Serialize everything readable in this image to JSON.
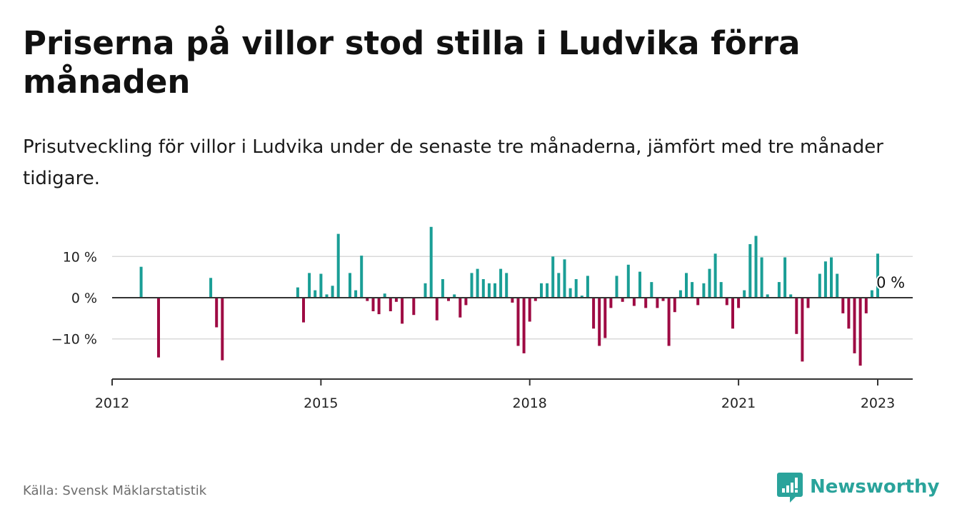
{
  "title": "Priserna på villor stod stilla i Ludvika förra månaden",
  "subtitle": "Prisutveckling för villor i Ludvika under de senaste tre månaderna, jämfört med tre månader tidigare.",
  "source": "Källa: Svensk Mäklarstatistik",
  "brand": {
    "name": "Newsworthy",
    "icon": "newsworthy-logo-icon"
  },
  "colors": {
    "positive": "#1a9e96",
    "negative": "#9e0a43",
    "grid": "#d9d9d9",
    "axis": "#333333",
    "brand": "#2aa39b"
  },
  "chart_data": {
    "type": "bar",
    "title": "",
    "xlabel": "",
    "ylabel": "",
    "x_unit": "month",
    "ylim": [
      -20,
      18
    ],
    "y_ticks": [
      {
        "value": 10,
        "label": "10 %"
      },
      {
        "value": 0,
        "label": "0 %"
      },
      {
        "value": -10,
        "label": "−10 %"
      }
    ],
    "x_ticks": [
      {
        "date": "2012-01",
        "label": "2012"
      },
      {
        "date": "2015-01",
        "label": "2015"
      },
      {
        "date": "2018-01",
        "label": "2018"
      },
      {
        "date": "2021-01",
        "label": "2021"
      },
      {
        "date": "2023-01",
        "label": "2023"
      }
    ],
    "last_value_label": "0 %",
    "grid": true,
    "bars": [
      {
        "date": "2012-06",
        "value": 7.5
      },
      {
        "date": "2012-09",
        "value": -14.5
      },
      {
        "date": "2013-06",
        "value": 4.8
      },
      {
        "date": "2013-07",
        "value": -7.2
      },
      {
        "date": "2013-08",
        "value": -15.2
      },
      {
        "date": "2014-09",
        "value": 2.5
      },
      {
        "date": "2014-10",
        "value": -6.0
      },
      {
        "date": "2014-11",
        "value": 6.0
      },
      {
        "date": "2014-12",
        "value": 1.8
      },
      {
        "date": "2015-01",
        "value": 5.8
      },
      {
        "date": "2015-02",
        "value": 0.8
      },
      {
        "date": "2015-03",
        "value": 2.9
      },
      {
        "date": "2015-04",
        "value": 15.5
      },
      {
        "date": "2015-06",
        "value": 6.0
      },
      {
        "date": "2015-07",
        "value": 1.8
      },
      {
        "date": "2015-08",
        "value": 10.2
      },
      {
        "date": "2015-09",
        "value": -0.8
      },
      {
        "date": "2015-10",
        "value": -3.3
      },
      {
        "date": "2015-11",
        "value": -4.0
      },
      {
        "date": "2015-12",
        "value": 1.0
      },
      {
        "date": "2016-01",
        "value": -3.3
      },
      {
        "date": "2016-02",
        "value": -1.0
      },
      {
        "date": "2016-03",
        "value": -6.3
      },
      {
        "date": "2016-05",
        "value": -4.2
      },
      {
        "date": "2016-07",
        "value": 3.5
      },
      {
        "date": "2016-08",
        "value": 17.2
      },
      {
        "date": "2016-09",
        "value": -5.5
      },
      {
        "date": "2016-10",
        "value": 4.5
      },
      {
        "date": "2016-11",
        "value": -0.8
      },
      {
        "date": "2016-12",
        "value": 0.8
      },
      {
        "date": "2017-01",
        "value": -4.8
      },
      {
        "date": "2017-02",
        "value": -1.8
      },
      {
        "date": "2017-03",
        "value": 6.0
      },
      {
        "date": "2017-04",
        "value": 7.0
      },
      {
        "date": "2017-05",
        "value": 4.5
      },
      {
        "date": "2017-06",
        "value": 3.5
      },
      {
        "date": "2017-07",
        "value": 3.5
      },
      {
        "date": "2017-08",
        "value": 7.0
      },
      {
        "date": "2017-09",
        "value": 6.0
      },
      {
        "date": "2017-10",
        "value": -1.2
      },
      {
        "date": "2017-11",
        "value": -11.7
      },
      {
        "date": "2017-12",
        "value": -13.5
      },
      {
        "date": "2018-01",
        "value": -5.8
      },
      {
        "date": "2018-02",
        "value": -0.8
      },
      {
        "date": "2018-03",
        "value": 3.5
      },
      {
        "date": "2018-04",
        "value": 3.5
      },
      {
        "date": "2018-05",
        "value": 10.0
      },
      {
        "date": "2018-06",
        "value": 6.0
      },
      {
        "date": "2018-07",
        "value": 9.3
      },
      {
        "date": "2018-08",
        "value": 2.3
      },
      {
        "date": "2018-09",
        "value": 4.5
      },
      {
        "date": "2018-10",
        "value": 0.5
      },
      {
        "date": "2018-11",
        "value": 5.3
      },
      {
        "date": "2018-12",
        "value": -7.5
      },
      {
        "date": "2019-01",
        "value": -11.7
      },
      {
        "date": "2019-02",
        "value": -9.8
      },
      {
        "date": "2019-03",
        "value": -2.5
      },
      {
        "date": "2019-04",
        "value": 5.3
      },
      {
        "date": "2019-05",
        "value": -1.0
      },
      {
        "date": "2019-06",
        "value": 8.0
      },
      {
        "date": "2019-07",
        "value": -2.0
      },
      {
        "date": "2019-08",
        "value": 6.3
      },
      {
        "date": "2019-09",
        "value": -2.5
      },
      {
        "date": "2019-10",
        "value": 3.8
      },
      {
        "date": "2019-11",
        "value": -2.5
      },
      {
        "date": "2019-12",
        "value": -0.8
      },
      {
        "date": "2020-01",
        "value": -11.7
      },
      {
        "date": "2020-02",
        "value": -3.5
      },
      {
        "date": "2020-03",
        "value": 1.8
      },
      {
        "date": "2020-04",
        "value": 6.0
      },
      {
        "date": "2020-05",
        "value": 3.8
      },
      {
        "date": "2020-06",
        "value": -1.8
      },
      {
        "date": "2020-07",
        "value": 3.5
      },
      {
        "date": "2020-08",
        "value": 7.0
      },
      {
        "date": "2020-09",
        "value": 10.7
      },
      {
        "date": "2020-10",
        "value": 3.8
      },
      {
        "date": "2020-11",
        "value": -1.8
      },
      {
        "date": "2020-12",
        "value": -7.5
      },
      {
        "date": "2021-01",
        "value": -2.5
      },
      {
        "date": "2021-02",
        "value": 1.8
      },
      {
        "date": "2021-03",
        "value": 13.0
      },
      {
        "date": "2021-04",
        "value": 15.0
      },
      {
        "date": "2021-05",
        "value": 9.8
      },
      {
        "date": "2021-06",
        "value": 0.8
      },
      {
        "date": "2021-08",
        "value": 3.8
      },
      {
        "date": "2021-09",
        "value": 9.8
      },
      {
        "date": "2021-10",
        "value": 0.8
      },
      {
        "date": "2021-11",
        "value": -8.8
      },
      {
        "date": "2021-12",
        "value": -15.5
      },
      {
        "date": "2022-01",
        "value": -2.5
      },
      {
        "date": "2022-03",
        "value": 5.8
      },
      {
        "date": "2022-04",
        "value": 8.8
      },
      {
        "date": "2022-05",
        "value": 9.8
      },
      {
        "date": "2022-06",
        "value": 5.8
      },
      {
        "date": "2022-07",
        "value": -3.8
      },
      {
        "date": "2022-08",
        "value": -7.5
      },
      {
        "date": "2022-09",
        "value": -13.5
      },
      {
        "date": "2022-10",
        "value": -16.5
      },
      {
        "date": "2022-11",
        "value": -3.8
      },
      {
        "date": "2022-12",
        "value": 1.8
      },
      {
        "date": "2023-01",
        "value": 10.7
      },
      {
        "date": "2023-02",
        "value": 0.0
      }
    ]
  }
}
